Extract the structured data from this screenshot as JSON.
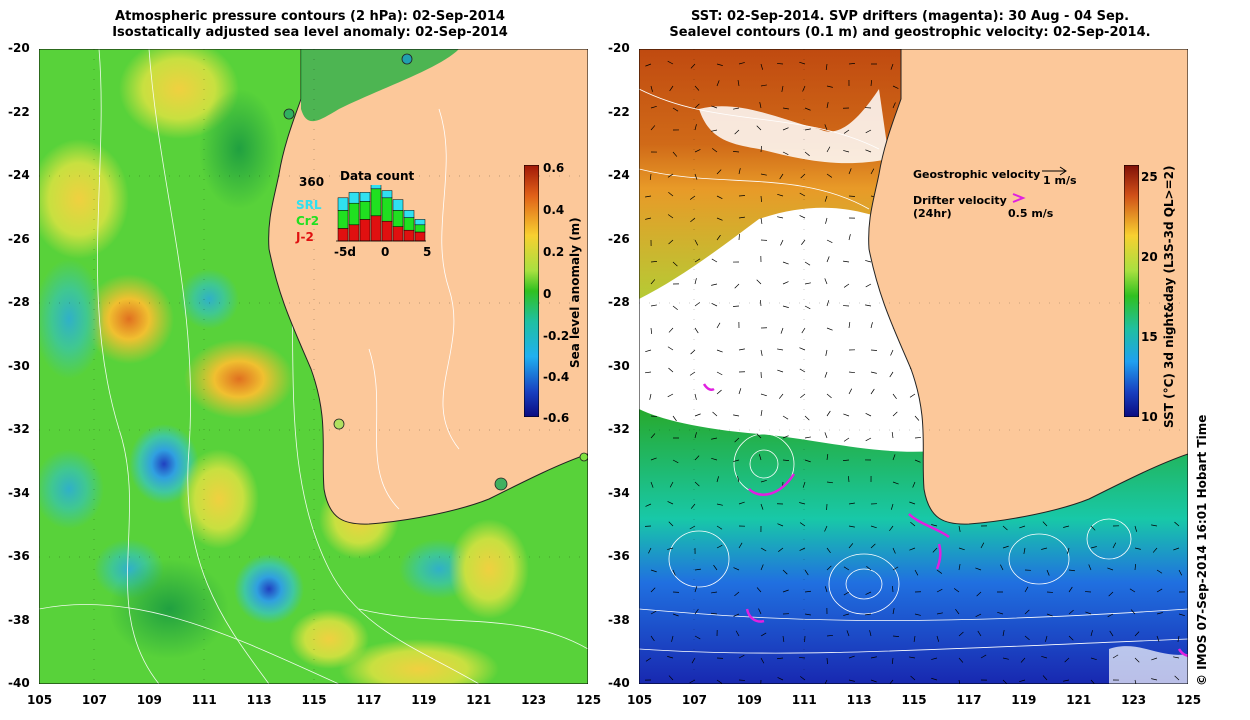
{
  "left_panel": {
    "title_line1": "Atmospheric pressure contours (2 hPa): 02-Sep-2014",
    "title_line2": "Isostatically adjusted sea level anomaly: 02-Sep-2014",
    "colorbar": {
      "label": "Sea level anomaly (m)",
      "ticks": [
        "0.6",
        "0.4",
        "0.2",
        "0",
        "-0.2",
        "-0.4",
        "-0.6"
      ]
    },
    "inset": {
      "title": "Data count",
      "max_label": "360",
      "series": [
        {
          "name": "SRL",
          "color": "#30e0f0"
        },
        {
          "name": "Cr2",
          "color": "#20e020"
        },
        {
          "name": "J-2",
          "color": "#e01010"
        }
      ],
      "xticks": [
        "-5d",
        "0",
        "5"
      ],
      "bar_data": [
        {
          "j2": 14,
          "cr2": 20,
          "srl": 14
        },
        {
          "j2": 18,
          "cr2": 24,
          "srl": 12
        },
        {
          "j2": 24,
          "cr2": 20,
          "srl": 10
        },
        {
          "j2": 28,
          "cr2": 30,
          "srl": 8
        },
        {
          "j2": 22,
          "cr2": 26,
          "srl": 8
        },
        {
          "j2": 16,
          "cr2": 18,
          "srl": 12
        },
        {
          "j2": 12,
          "cr2": 14,
          "srl": 8
        },
        {
          "j2": 10,
          "cr2": 8,
          "srl": 6
        }
      ]
    }
  },
  "right_panel": {
    "title_line1": "SST: 02-Sep-2014. SVP drifters (magenta): 30 Aug - 04 Sep.",
    "title_line2": "Sealevel contours (0.1 m) and geostrophic velocity: 02-Sep-2014.",
    "legend": {
      "geo_label": "Geostrophic velocity",
      "geo_scale": "1 m/s",
      "drifter_label": "Drifter velocity",
      "drifter_sub": "(24hr)",
      "drifter_scale": "0.5 m/s"
    },
    "colorbar": {
      "label": "SST (°C) 3d night&day (L3S-3d QL>=2)",
      "ticks": [
        "25",
        "20",
        "15",
        "10"
      ]
    }
  },
  "axes": {
    "y_ticks": [
      "-20",
      "-22",
      "-24",
      "-26",
      "-28",
      "-30",
      "-32",
      "-34",
      "-36",
      "-38",
      "-40"
    ],
    "x_ticks": [
      "105",
      "107",
      "109",
      "111",
      "113",
      "115",
      "117",
      "119",
      "121",
      "123",
      "125"
    ]
  },
  "credit": "© IMOS 07-Sep-2014 16:01 Hobart Time",
  "colors": {
    "land": "#fcc89a",
    "sla_base": "#58d23a"
  }
}
